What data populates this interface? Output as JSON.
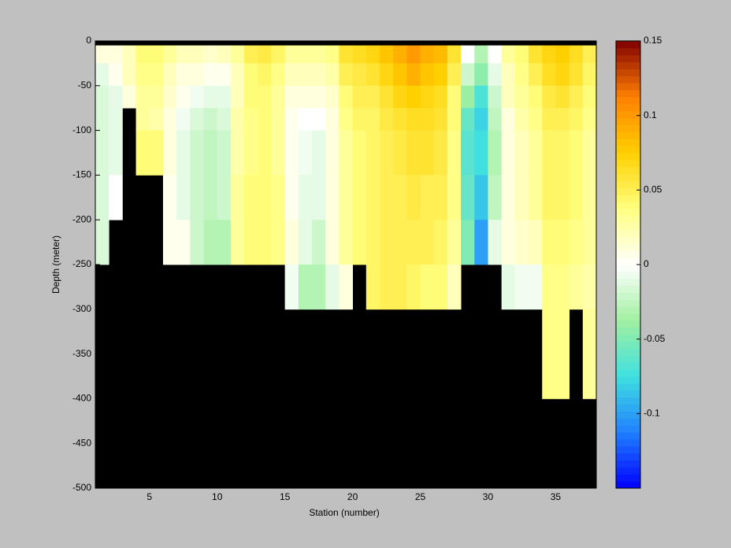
{
  "chart_data": {
    "type": "heatmap",
    "xlabel": "Station (number)",
    "ylabel": "Depth (meter)",
    "x": [
      1,
      2,
      3,
      4,
      5,
      6,
      7,
      8,
      9,
      10,
      11,
      12,
      13,
      14,
      15,
      16,
      17,
      18,
      19,
      20,
      21,
      22,
      23,
      24,
      25,
      26,
      27,
      28,
      29,
      30,
      31,
      32,
      33,
      34,
      35,
      36,
      37,
      38
    ],
    "y": [
      0,
      -5,
      -25,
      -50,
      -75,
      -100,
      -150,
      -200,
      -250,
      -300,
      -400,
      -500
    ],
    "z": [
      [
        null,
        0.01,
        -0.01,
        -0.015,
        -0.015,
        -0.015,
        -0.015,
        -0.015,
        null,
        null,
        null
      ],
      [
        null,
        0.01,
        0.005,
        -0.01,
        -0.01,
        -0.01,
        0.0,
        null,
        null,
        null,
        null
      ],
      [
        null,
        0.02,
        0.02,
        0.01,
        null,
        null,
        null,
        null,
        null,
        null,
        null
      ],
      [
        null,
        0.04,
        0.035,
        0.03,
        0.03,
        0.04,
        null,
        null,
        null,
        null,
        null
      ],
      [
        null,
        0.04,
        0.035,
        0.03,
        0.025,
        0.04,
        null,
        null,
        null,
        null,
        null
      ],
      [
        null,
        0.03,
        0.02,
        0.015,
        0.01,
        0.01,
        0.005,
        0.005,
        null,
        null,
        null
      ],
      [
        null,
        0.02,
        0.01,
        0.005,
        -0.005,
        -0.01,
        -0.01,
        0.005,
        null,
        null,
        null
      ],
      [
        null,
        0.02,
        0.01,
        -0.005,
        -0.015,
        -0.02,
        -0.02,
        -0.02,
        null,
        null,
        null
      ],
      [
        null,
        0.015,
        0.005,
        -0.01,
        -0.02,
        -0.025,
        -0.025,
        -0.03,
        null,
        null,
        null
      ],
      [
        null,
        0.02,
        0.005,
        -0.01,
        -0.015,
        -0.02,
        -0.02,
        -0.03,
        null,
        null,
        null
      ],
      [
        null,
        0.03,
        0.02,
        0.02,
        0.025,
        0.025,
        0.03,
        0.03,
        null,
        null,
        null
      ],
      [
        null,
        0.05,
        0.04,
        0.04,
        0.035,
        0.035,
        0.04,
        0.04,
        null,
        null,
        null
      ],
      [
        null,
        0.055,
        0.045,
        0.04,
        0.04,
        0.04,
        0.04,
        0.04,
        null,
        null,
        null
      ],
      [
        null,
        0.045,
        0.035,
        0.03,
        0.03,
        0.03,
        0.035,
        0.035,
        null,
        null,
        null
      ],
      [
        null,
        0.03,
        0.02,
        0.01,
        0.005,
        0.005,
        0.005,
        0.01,
        -0.005,
        null,
        null
      ],
      [
        null,
        0.03,
        0.02,
        0.01,
        0.0,
        -0.005,
        -0.01,
        -0.01,
        -0.03,
        null,
        null
      ],
      [
        null,
        0.03,
        0.02,
        0.01,
        0.0,
        -0.01,
        -0.01,
        -0.02,
        -0.03,
        null,
        null
      ],
      [
        null,
        0.035,
        0.025,
        0.015,
        0.01,
        0.01,
        0.01,
        0.01,
        -0.01,
        null,
        null
      ],
      [
        null,
        0.06,
        0.05,
        0.04,
        0.035,
        0.03,
        0.03,
        0.03,
        0.01,
        null,
        null
      ],
      [
        null,
        0.065,
        0.055,
        0.05,
        0.045,
        0.04,
        0.04,
        0.04,
        null,
        null,
        null
      ],
      [
        null,
        0.07,
        0.06,
        0.05,
        0.045,
        0.045,
        0.045,
        0.045,
        0.045,
        null,
        null
      ],
      [
        null,
        0.08,
        0.07,
        0.06,
        0.055,
        0.05,
        0.05,
        0.05,
        0.05,
        null,
        null
      ],
      [
        null,
        0.09,
        0.08,
        0.07,
        0.06,
        0.055,
        0.05,
        0.05,
        0.05,
        null,
        null
      ],
      [
        null,
        0.1,
        0.09,
        0.075,
        0.065,
        0.06,
        0.055,
        0.05,
        0.045,
        null,
        null
      ],
      [
        null,
        0.09,
        0.08,
        0.07,
        0.065,
        0.06,
        0.05,
        0.05,
        0.04,
        null,
        null
      ],
      [
        null,
        0.085,
        0.075,
        0.065,
        0.06,
        0.055,
        0.05,
        0.045,
        0.04,
        null,
        null
      ],
      [
        null,
        0.06,
        0.05,
        0.04,
        0.04,
        0.035,
        0.035,
        0.03,
        0.02,
        null,
        null
      ],
      [
        null,
        0.0,
        -0.02,
        -0.04,
        -0.06,
        -0.065,
        -0.06,
        -0.05,
        null,
        null,
        null
      ],
      [
        null,
        -0.03,
        -0.045,
        -0.07,
        -0.08,
        -0.075,
        -0.085,
        -0.1,
        null,
        null,
        null
      ],
      [
        null,
        0.0,
        -0.01,
        -0.02,
        -0.025,
        -0.03,
        -0.025,
        -0.01,
        null,
        null,
        null
      ],
      [
        null,
        0.03,
        0.02,
        0.02,
        0.01,
        0.01,
        0.01,
        0.01,
        -0.01,
        null,
        null
      ],
      [
        null,
        0.04,
        0.035,
        0.03,
        0.025,
        0.02,
        0.02,
        0.015,
        -0.005,
        null,
        null
      ],
      [
        null,
        0.06,
        0.05,
        0.04,
        0.035,
        0.03,
        0.03,
        0.02,
        -0.005,
        null,
        null
      ],
      [
        null,
        0.07,
        0.065,
        0.055,
        0.05,
        0.045,
        0.045,
        0.04,
        0.035,
        0.035,
        null
      ],
      [
        null,
        0.075,
        0.07,
        0.06,
        0.05,
        0.045,
        0.045,
        0.04,
        0.035,
        0.035,
        null
      ],
      [
        null,
        0.065,
        0.06,
        0.05,
        0.045,
        0.04,
        0.04,
        0.035,
        0.03,
        null,
        null
      ],
      [
        null,
        0.05,
        0.045,
        0.04,
        0.035,
        0.03,
        0.03,
        0.03,
        0.025,
        0.03,
        null
      ]
    ],
    "xlim": [
      1,
      38
    ],
    "xticks": [
      5,
      10,
      15,
      20,
      25,
      30,
      35
    ],
    "ylim": [
      -500,
      0
    ],
    "yticks": [
      0,
      -50,
      -100,
      -150,
      -200,
      -250,
      -300,
      -350,
      -400,
      -450,
      -500
    ],
    "clim": [
      -0.15,
      0.15
    ],
    "cticks": [
      -0.1,
      -0.05,
      0,
      0.05,
      0.1,
      0.15
    ],
    "colormap": [
      "#0000ff",
      "#2080ff",
      "#40e0e0",
      "#a0f0a0",
      "#ffffff",
      "#ffff80",
      "#ffd000",
      "#ff8000",
      "#800000"
    ],
    "nan_color": "#000000"
  }
}
